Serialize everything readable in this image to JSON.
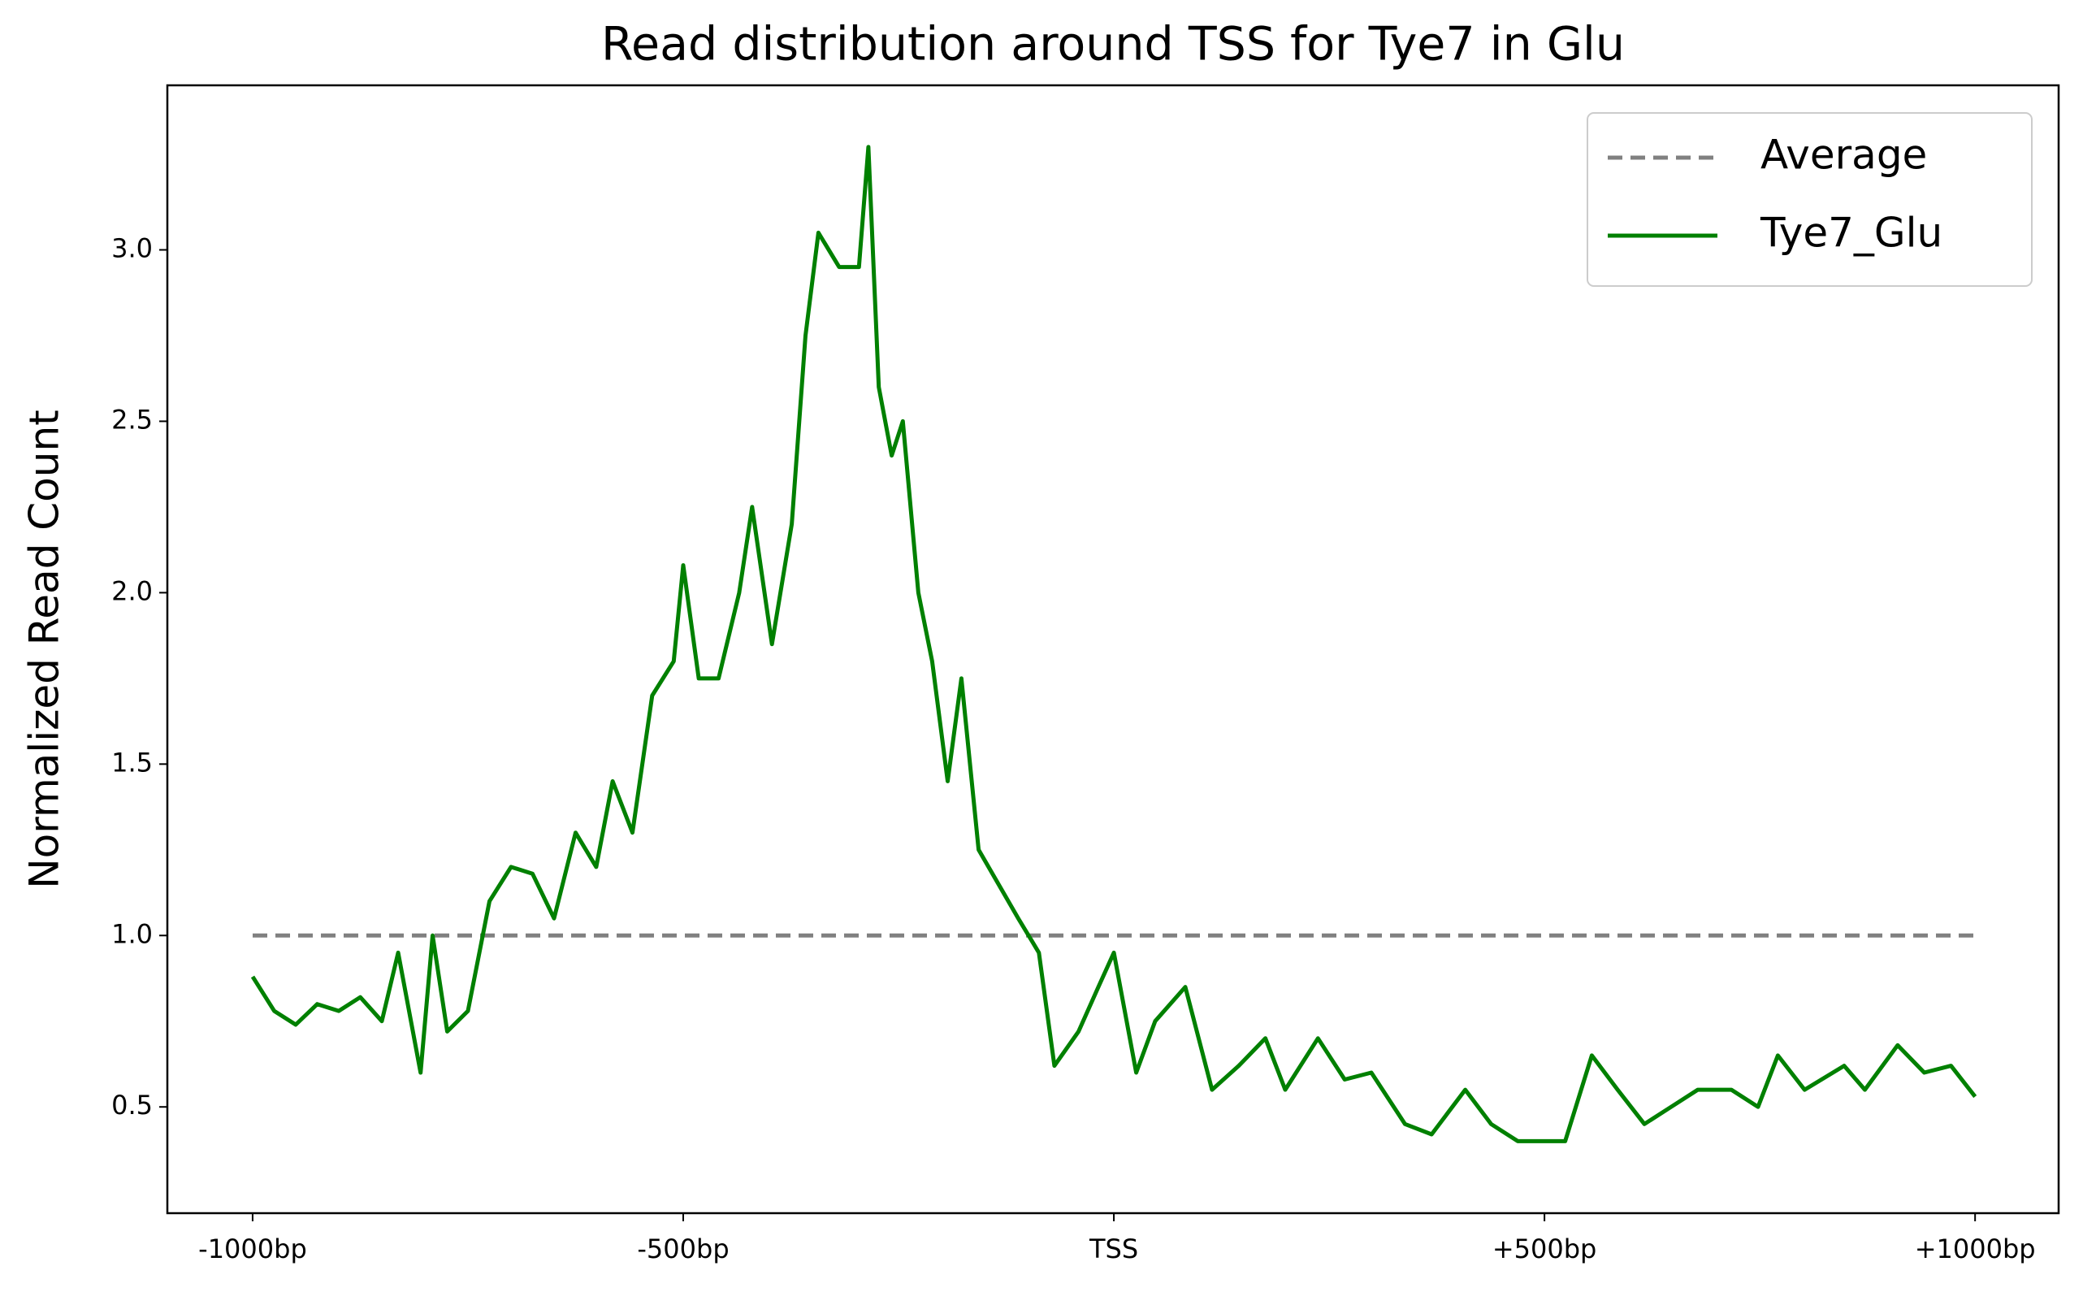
{
  "chart_data": {
    "type": "line",
    "title": "Read distribution around TSS for Tye7 in Glu",
    "y_label": "Normalized Read Count",
    "xlim": [
      -1099,
      1097
    ],
    "ylim": [
      0.19,
      3.48
    ],
    "xticks": [
      {
        "value": -1000,
        "label": "-1000bp"
      },
      {
        "value": -500,
        "label": "-500bp"
      },
      {
        "value": 0,
        "label": "TSS"
      },
      {
        "value": 500,
        "label": "+500bp"
      },
      {
        "value": 1000,
        "label": "+1000bp"
      }
    ],
    "yticks": [
      0.5,
      {
        "value": 1,
        "label": "1.0"
      },
      1.5,
      {
        "value": 2,
        "label": "2.0"
      },
      2.5,
      {
        "value": 3,
        "label": "3.0"
      }
    ],
    "legend": "upper right",
    "series": [
      {
        "name": "Average",
        "color": "#808080",
        "dashed": true,
        "x": [
          -1000,
          1000
        ],
        "values": [
          1,
          1
        ]
      },
      {
        "name": "Tye7_Glu",
        "color": "#008000",
        "dashed": false,
        "x": [
          -1000,
          -975,
          -950,
          -925,
          -900,
          -875,
          -850,
          -831,
          -805,
          -791,
          -774,
          -750,
          -725,
          -700,
          -675,
          -650,
          -625,
          -601,
          -582,
          -559,
          -536,
          -511,
          -500,
          -482,
          -459,
          -435,
          -420,
          -397,
          -374,
          -358,
          -343,
          -319,
          -296,
          -285,
          -273,
          -258,
          -245,
          -227,
          -211,
          -193,
          -177,
          -157,
          -134,
          -111,
          -87,
          -69,
          -41,
          -18,
          0,
          26,
          48,
          83,
          114,
          145,
          176,
          199,
          237,
          268,
          299,
          338,
          369,
          408,
          438,
          469,
          500,
          524,
          555,
          585,
          616,
          647,
          678,
          717,
          748,
          771,
          802,
          848,
          872,
          910,
          941,
          972,
          1000
        ],
        "values": [
          0.88,
          0.78,
          0.74,
          0.8,
          0.78,
          0.82,
          0.75,
          0.95,
          0.6,
          1.0,
          0.72,
          0.78,
          1.1,
          1.2,
          1.18,
          1.05,
          1.3,
          1.2,
          1.45,
          1.3,
          1.7,
          1.8,
          2.08,
          1.75,
          1.75,
          2.0,
          2.25,
          1.85,
          2.2,
          2.75,
          3.05,
          2.95,
          2.95,
          3.3,
          2.6,
          2.4,
          2.5,
          2.0,
          1.8,
          1.45,
          1.75,
          1.25,
          1.15,
          1.05,
          0.95,
          0.62,
          0.72,
          0.85,
          0.95,
          0.6,
          0.75,
          0.85,
          0.55,
          0.62,
          0.7,
          0.55,
          0.7,
          0.58,
          0.6,
          0.45,
          0.42,
          0.55,
          0.45,
          0.4,
          0.4,
          0.4,
          0.65,
          0.55,
          0.45,
          0.5,
          0.55,
          0.55,
          0.5,
          0.65,
          0.55,
          0.62,
          0.55,
          0.68,
          0.6,
          0.62,
          0.53
        ]
      }
    ]
  }
}
